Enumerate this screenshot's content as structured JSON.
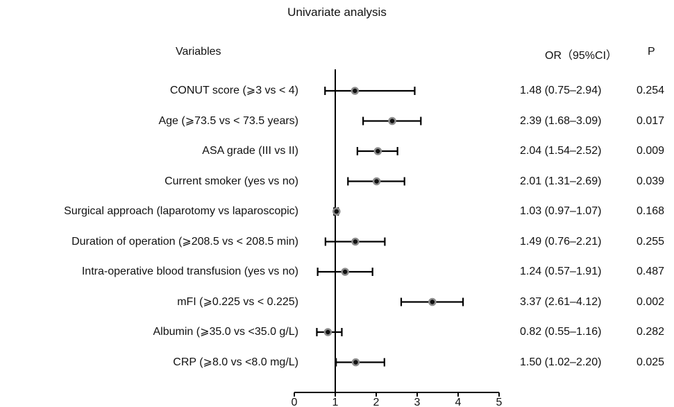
{
  "title": "Univariate analysis",
  "headers": {
    "variables": "Variables",
    "or": "OR（95%CI）",
    "p": "P"
  },
  "colors": {
    "line": "#000000",
    "marker_fill": "#111111",
    "marker_ring": "#8c8c8c"
  },
  "chart_data": {
    "type": "forest",
    "title": "Univariate analysis",
    "reference_line": 1,
    "xlim": [
      0,
      5
    ],
    "xticks": [
      "0",
      "1",
      "2",
      "3",
      "4",
      "5"
    ],
    "rows": [
      {
        "label": "CONUT score (⩾3 vs < 4)",
        "or": 1.48,
        "lower": 0.75,
        "upper": 2.94,
        "or_text": "1.48 (0.75–2.94)",
        "p": "0.254"
      },
      {
        "label": "Age (⩾73.5 vs < 73.5 years)",
        "or": 2.39,
        "lower": 1.68,
        "upper": 3.09,
        "or_text": "2.39 (1.68–3.09)",
        "p": "0.017"
      },
      {
        "label": "ASA grade (III vs II)",
        "or": 2.04,
        "lower": 1.54,
        "upper": 2.52,
        "or_text": "2.04 (1.54–2.52)",
        "p": "0.009"
      },
      {
        "label": "Current smoker (yes vs no)",
        "or": 2.01,
        "lower": 1.31,
        "upper": 2.69,
        "or_text": "2.01 (1.31–2.69)",
        "p": "0.039"
      },
      {
        "label": "Surgical approach (laparotomy vs laparoscopic)",
        "or": 1.03,
        "lower": 0.97,
        "upper": 1.07,
        "or_text": "1.03 (0.97–1.07)",
        "p": "0.168"
      },
      {
        "label": "Duration of operation (⩾208.5 vs < 208.5 min)",
        "or": 1.49,
        "lower": 0.76,
        "upper": 2.21,
        "or_text": "1.49 (0.76–2.21)",
        "p": "0.255"
      },
      {
        "label": "Intra-operative blood transfusion (yes vs no)",
        "or": 1.24,
        "lower": 0.57,
        "upper": 1.91,
        "or_text": "1.24 (0.57–1.91)",
        "p": "0.487"
      },
      {
        "label": "mFI (⩾0.225 vs < 0.225)",
        "or": 3.37,
        "lower": 2.61,
        "upper": 4.12,
        "or_text": "3.37 (2.61–4.12)",
        "p": "0.002"
      },
      {
        "label": "Albumin (⩾35.0 vs <35.0 g/L)",
        "or": 0.82,
        "lower": 0.55,
        "upper": 1.16,
        "or_text": "0.82 (0.55–1.16)",
        "p": "0.282"
      },
      {
        "label": "CRP (⩾8.0 vs <8.0 mg/L)",
        "or": 1.5,
        "lower": 1.02,
        "upper": 2.2,
        "or_text": "1.50 (1.02–2.20)",
        "p": "0.025"
      }
    ]
  }
}
